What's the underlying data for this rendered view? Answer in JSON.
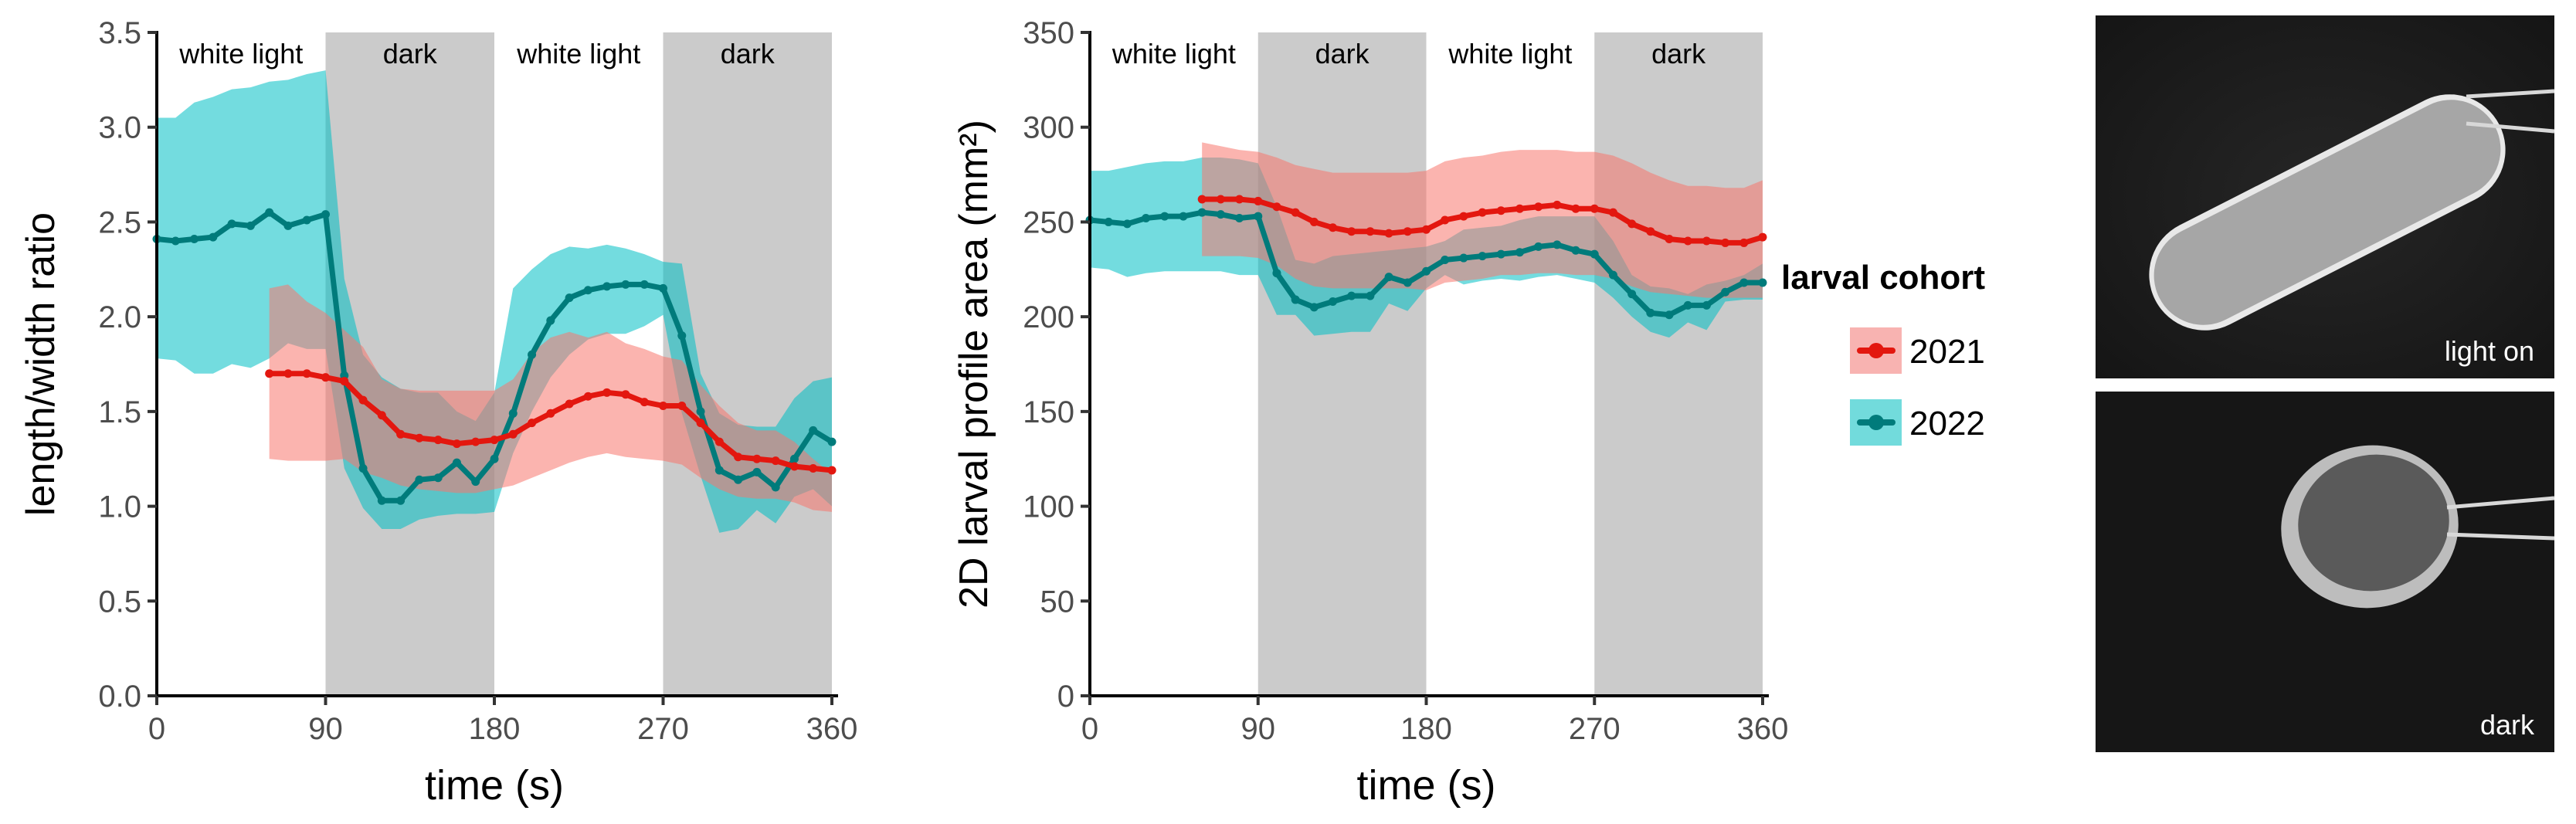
{
  "colors": {
    "series_2021_line": "#e3170f",
    "series_2021_band": "#f8766d",
    "series_2022_line": "#007b7b",
    "series_2022_band": "#00bfc4",
    "phase_dark_bg": "#cbcbcb",
    "axis": "#000000",
    "tick_label": "#4d4d4d"
  },
  "legend": {
    "title": "larval cohort",
    "entries": [
      {
        "label": "2021",
        "series": "2021"
      },
      {
        "label": "2022",
        "series": "2022"
      }
    ],
    "placement": "right"
  },
  "photos": [
    {
      "caption": "light on",
      "subject": "elongated larva under white light"
    },
    {
      "caption": "dark",
      "subject": "contracted round larva in dark"
    }
  ],
  "chart_data": [
    {
      "type": "line",
      "title": "",
      "xlabel": "time (s)",
      "ylabel": "length/width ratio",
      "xlim": [
        0,
        360
      ],
      "ylim": [
        0,
        3.5
      ],
      "xticks": [
        "0",
        "90",
        "180",
        "270",
        "360"
      ],
      "yticks": [
        "0.0",
        "0.5",
        "1.0",
        "1.5",
        "2.0",
        "2.5",
        "3.0",
        "3.5"
      ],
      "xtick_values": [
        0,
        90,
        180,
        270,
        360
      ],
      "ytick_values": [
        0,
        0.5,
        1.0,
        1.5,
        2.0,
        2.5,
        3.0,
        3.5
      ],
      "grid": false,
      "phases": [
        {
          "label": "white light",
          "start": 0,
          "end": 90,
          "shaded": false
        },
        {
          "label": "dark",
          "start": 90,
          "end": 180,
          "shaded": true
        },
        {
          "label": "white light",
          "start": 180,
          "end": 270,
          "shaded": false
        },
        {
          "label": "dark",
          "start": 270,
          "end": 360,
          "shaded": true
        }
      ],
      "series": [
        {
          "name": "2022",
          "x": [
            0,
            10,
            20,
            30,
            40,
            50,
            60,
            70,
            80,
            90,
            100,
            110,
            120,
            130,
            140,
            150,
            160,
            170,
            180,
            190,
            200,
            210,
            220,
            230,
            240,
            250,
            260,
            270,
            280,
            290,
            300,
            310,
            320,
            330,
            340,
            350,
            360
          ],
          "y": [
            2.41,
            2.4,
            2.41,
            2.42,
            2.49,
            2.48,
            2.55,
            2.48,
            2.51,
            2.54,
            1.69,
            1.2,
            1.03,
            1.03,
            1.14,
            1.15,
            1.23,
            1.13,
            1.25,
            1.49,
            1.8,
            1.98,
            2.1,
            2.14,
            2.16,
            2.17,
            2.17,
            2.15,
            1.9,
            1.5,
            1.19,
            1.14,
            1.18,
            1.1,
            1.25,
            1.4,
            1.34
          ],
          "upper": [
            3.05,
            3.05,
            3.13,
            3.16,
            3.2,
            3.21,
            3.24,
            3.25,
            3.28,
            3.3,
            2.2,
            1.8,
            1.68,
            1.62,
            1.6,
            1.6,
            1.5,
            1.45,
            1.6,
            2.15,
            2.25,
            2.33,
            2.37,
            2.36,
            2.38,
            2.36,
            2.33,
            2.29,
            2.28,
            1.7,
            1.49,
            1.43,
            1.42,
            1.42,
            1.57,
            1.66,
            1.68
          ],
          "lower": [
            1.78,
            1.77,
            1.7,
            1.7,
            1.75,
            1.73,
            1.78,
            1.86,
            1.83,
            1.83,
            1.2,
            0.99,
            0.88,
            0.88,
            0.93,
            0.95,
            0.96,
            0.96,
            0.97,
            1.28,
            1.5,
            1.68,
            1.8,
            1.88,
            1.91,
            1.91,
            1.95,
            2.01,
            1.49,
            1.16,
            0.86,
            0.88,
            0.98,
            0.91,
            1.05,
            1.09,
            1.0
          ]
        },
        {
          "name": "2021",
          "x": [
            60,
            70,
            80,
            90,
            100,
            110,
            120,
            130,
            140,
            150,
            160,
            170,
            180,
            190,
            200,
            210,
            220,
            230,
            240,
            250,
            260,
            270,
            280,
            290,
            300,
            310,
            320,
            330,
            340,
            350,
            360
          ],
          "y": [
            1.7,
            1.7,
            1.7,
            1.68,
            1.66,
            1.56,
            1.48,
            1.38,
            1.36,
            1.35,
            1.33,
            1.34,
            1.35,
            1.38,
            1.44,
            1.49,
            1.54,
            1.58,
            1.6,
            1.59,
            1.55,
            1.53,
            1.53,
            1.44,
            1.34,
            1.26,
            1.25,
            1.24,
            1.21,
            1.2,
            1.19
          ],
          "upper": [
            2.15,
            2.17,
            2.08,
            2.02,
            1.93,
            1.84,
            1.67,
            1.62,
            1.61,
            1.61,
            1.61,
            1.61,
            1.61,
            1.67,
            1.81,
            1.89,
            1.92,
            1.89,
            1.92,
            1.86,
            1.83,
            1.79,
            1.77,
            1.64,
            1.53,
            1.44,
            1.4,
            1.4,
            1.34,
            1.25,
            1.17
          ],
          "lower": [
            1.25,
            1.24,
            1.24,
            1.24,
            1.25,
            1.18,
            1.15,
            1.11,
            1.09,
            1.08,
            1.07,
            1.07,
            1.09,
            1.11,
            1.15,
            1.19,
            1.23,
            1.26,
            1.28,
            1.26,
            1.25,
            1.24,
            1.22,
            1.15,
            1.09,
            1.05,
            1.04,
            1.04,
            1.02,
            0.98,
            0.97
          ]
        }
      ]
    },
    {
      "type": "line",
      "title": "",
      "xlabel": "time (s)",
      "ylabel": "2D larval profile area (mm²)",
      "xlim": [
        0,
        360
      ],
      "ylim": [
        0,
        350
      ],
      "xticks": [
        "0",
        "90",
        "180",
        "270",
        "360"
      ],
      "yticks": [
        "0",
        "50",
        "100",
        "150",
        "200",
        "250",
        "300",
        "350"
      ],
      "xtick_values": [
        0,
        90,
        180,
        270,
        360
      ],
      "ytick_values": [
        0,
        50,
        100,
        150,
        200,
        250,
        300,
        350
      ],
      "grid": false,
      "phases": [
        {
          "label": "white light",
          "start": 0,
          "end": 90,
          "shaded": false
        },
        {
          "label": "dark",
          "start": 90,
          "end": 180,
          "shaded": true
        },
        {
          "label": "white light",
          "start": 180,
          "end": 270,
          "shaded": false
        },
        {
          "label": "dark",
          "start": 270,
          "end": 360,
          "shaded": true
        }
      ],
      "series": [
        {
          "name": "2022",
          "x": [
            0,
            10,
            20,
            30,
            40,
            50,
            60,
            70,
            80,
            90,
            100,
            110,
            120,
            130,
            140,
            150,
            160,
            170,
            180,
            190,
            200,
            210,
            220,
            230,
            240,
            250,
            260,
            270,
            280,
            290,
            300,
            310,
            320,
            330,
            340,
            350,
            360
          ],
          "y": [
            251,
            250,
            249,
            252,
            253,
            253,
            255,
            254,
            252,
            253,
            223,
            209,
            205,
            208,
            211,
            211,
            221,
            218,
            224,
            230,
            231,
            232,
            233,
            234,
            237,
            238,
            235,
            233,
            222,
            212,
            202,
            201,
            206,
            206,
            213,
            218,
            218
          ],
          "upper": [
            277,
            277,
            279,
            281,
            282,
            282,
            284,
            284,
            283,
            281,
            258,
            230,
            228,
            232,
            233,
            234,
            235,
            236,
            237,
            240,
            246,
            247,
            248,
            251,
            253,
            253,
            253,
            253,
            240,
            222,
            216,
            215,
            212,
            217,
            219,
            222,
            228
          ],
          "lower": [
            226,
            225,
            221,
            223,
            224,
            224,
            224,
            224,
            222,
            222,
            201,
            201,
            190,
            191,
            192,
            192,
            207,
            203,
            215,
            222,
            217,
            219,
            220,
            219,
            221,
            222,
            220,
            218,
            210,
            200,
            192,
            189,
            197,
            193,
            208,
            209,
            209
          ]
        },
        {
          "name": "2021",
          "x": [
            60,
            70,
            80,
            90,
            100,
            110,
            120,
            130,
            140,
            150,
            160,
            170,
            180,
            190,
            200,
            210,
            220,
            230,
            240,
            250,
            260,
            270,
            280,
            290,
            300,
            310,
            320,
            330,
            340,
            350,
            360
          ],
          "y": [
            262,
            262,
            262,
            261,
            258,
            255,
            250,
            247,
            245,
            245,
            244,
            245,
            246,
            251,
            253,
            255,
            256,
            257,
            258,
            259,
            257,
            257,
            255,
            249,
            245,
            241,
            240,
            240,
            239,
            239,
            242
          ],
          "upper": [
            292,
            290,
            288,
            287,
            284,
            280,
            278,
            276,
            276,
            276,
            276,
            276,
            277,
            282,
            284,
            285,
            287,
            288,
            288,
            288,
            287,
            287,
            285,
            281,
            276,
            272,
            269,
            269,
            268,
            268,
            272
          ],
          "lower": [
            232,
            232,
            232,
            231,
            227,
            220,
            216,
            215,
            215,
            215,
            215,
            215,
            214,
            218,
            219,
            220,
            222,
            222,
            223,
            223,
            222,
            222,
            220,
            216,
            213,
            212,
            211,
            210,
            210,
            210,
            210
          ]
        }
      ]
    }
  ]
}
